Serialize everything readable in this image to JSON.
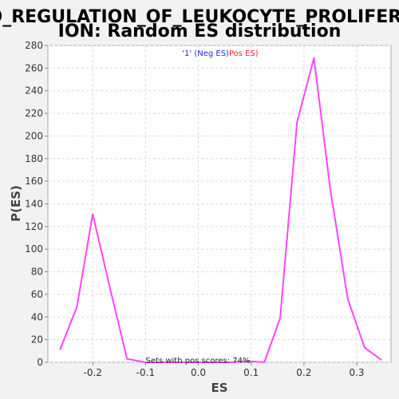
{
  "chart_data": {
    "type": "line",
    "title_lines": [
      "GO_REGULATION_OF_LEUKOCYTE_PROLIFERAT",
      "ION: Random ES distribution"
    ],
    "xlabel": "ES",
    "ylabel": "P(ES)",
    "xlim": [
      -0.285,
      0.365
    ],
    "ylim": [
      0,
      280
    ],
    "x_ticks": [
      -0.2,
      -0.1,
      0.0,
      0.1,
      0.2,
      0.3
    ],
    "x_tick_labels": [
      "-0.2",
      "-0.1",
      "0.0",
      "0.1",
      "0.2",
      "0.3"
    ],
    "y_ticks": [
      0,
      20,
      40,
      60,
      80,
      100,
      120,
      140,
      160,
      180,
      200,
      220,
      240,
      260,
      280
    ],
    "y_tick_labels": [
      "0",
      "20",
      "40",
      "60",
      "80",
      "100",
      "120",
      "140",
      "160",
      "180",
      "200",
      "220",
      "240",
      "260",
      "280"
    ],
    "grid": true,
    "legend": {
      "placement": "top-center",
      "parts": [
        {
          "text": "'1' (Neg ES)",
          "color": "#2424ff"
        },
        {
          "text": "Pos ES)",
          "color": "#ff2020"
        }
      ]
    },
    "annotation": "Sets with pos scores: 74%",
    "series": [
      {
        "color": "#ff44ff",
        "x": [
          -0.262,
          -0.23,
          -0.2,
          -0.166,
          -0.135,
          -0.1,
          -0.07,
          -0.04,
          0.0,
          0.03,
          0.06,
          0.094,
          0.125,
          0.155,
          0.187,
          0.219,
          0.25,
          0.283,
          0.315,
          0.347
        ],
        "y": [
          11,
          49,
          131,
          63,
          3,
          0,
          0,
          0,
          0,
          0,
          0,
          1,
          0,
          39,
          212,
          269,
          153,
          56,
          13,
          2
        ]
      }
    ]
  }
}
